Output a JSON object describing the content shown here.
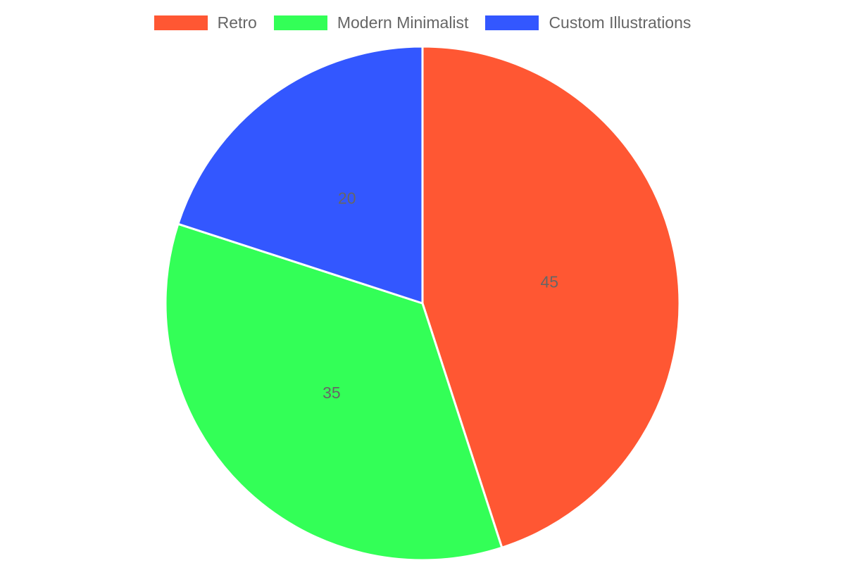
{
  "chart_data": {
    "type": "pie",
    "categories": [
      "Retro",
      "Modern Minimalist",
      "Custom Illustrations"
    ],
    "values": [
      45,
      35,
      20
    ],
    "colors": [
      "#ff5733",
      "#33ff57",
      "#3357ff"
    ],
    "title": "",
    "legend_position": "top",
    "data_labels": [
      "45",
      "35",
      "20"
    ]
  }
}
